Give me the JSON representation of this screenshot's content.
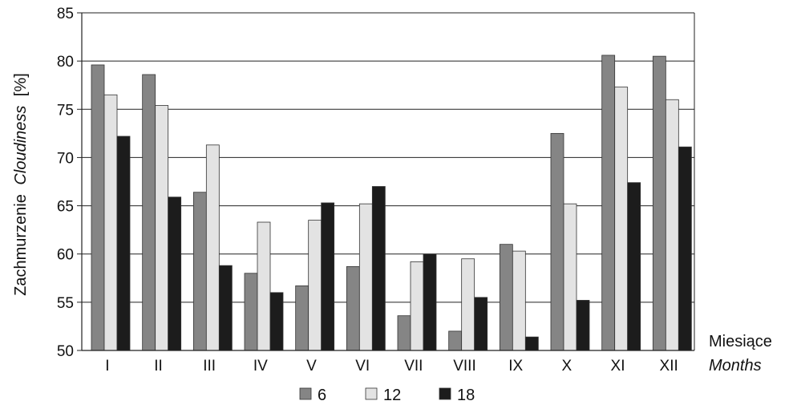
{
  "chart_data": {
    "type": "bar",
    "ylabel_main": "Zachmurzenie",
    "ylabel_italic": "Cloudiness",
    "ylabel_unit": "[%]",
    "xlabel_main": "Miesiące",
    "xlabel_italic": "Months",
    "ylim": [
      50,
      85
    ],
    "yticks": [
      50,
      55,
      60,
      65,
      70,
      75,
      80,
      85
    ],
    "grid": true,
    "legend_position": "bottom",
    "categories": [
      "I",
      "II",
      "III",
      "IV",
      "V",
      "VI",
      "VII",
      "VIII",
      "IX",
      "X",
      "XI",
      "XII"
    ],
    "series": [
      {
        "name": "6",
        "color": "#858585",
        "values": [
          79.6,
          78.6,
          66.4,
          58.0,
          56.7,
          58.7,
          53.6,
          52.0,
          61.0,
          72.5,
          80.6,
          80.5
        ]
      },
      {
        "name": "12",
        "color": "#e3e3e3",
        "values": [
          76.5,
          75.4,
          71.3,
          63.3,
          63.5,
          65.2,
          59.2,
          59.5,
          60.3,
          65.2,
          77.3,
          76.0
        ]
      },
      {
        "name": "18",
        "color": "#1c1c1c",
        "values": [
          72.2,
          65.9,
          58.8,
          56.0,
          65.3,
          67.0,
          60.0,
          55.5,
          51.4,
          55.2,
          67.4,
          71.1
        ]
      }
    ]
  }
}
